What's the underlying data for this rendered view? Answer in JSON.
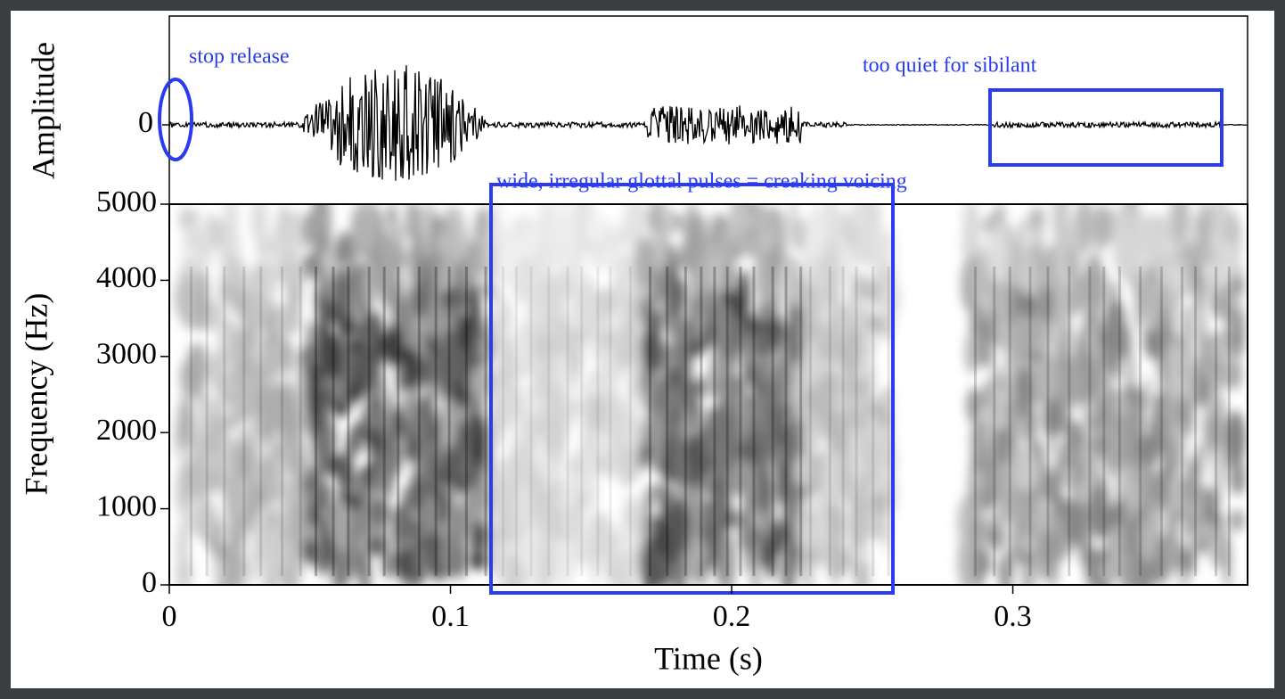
{
  "chart_data": [
    {
      "type": "waveform",
      "ylabel": "Amplitude",
      "yticks": [
        0
      ],
      "annotations": [
        "stop release",
        "too quiet for sibilant"
      ]
    },
    {
      "type": "spectrogram",
      "ylabel": "Frequency (Hz)",
      "xlabel": "Time (s)",
      "xlim": [
        0,
        0.3835
      ],
      "xticks": [
        0,
        0.1,
        0.2,
        0.3
      ],
      "ylim": [
        0,
        5000
      ],
      "yticks": [
        0,
        1000,
        2000,
        3000,
        4000,
        5000
      ],
      "annotations": [
        "wide, irregular glottal pulses = creaking voicing"
      ]
    }
  ]
}
